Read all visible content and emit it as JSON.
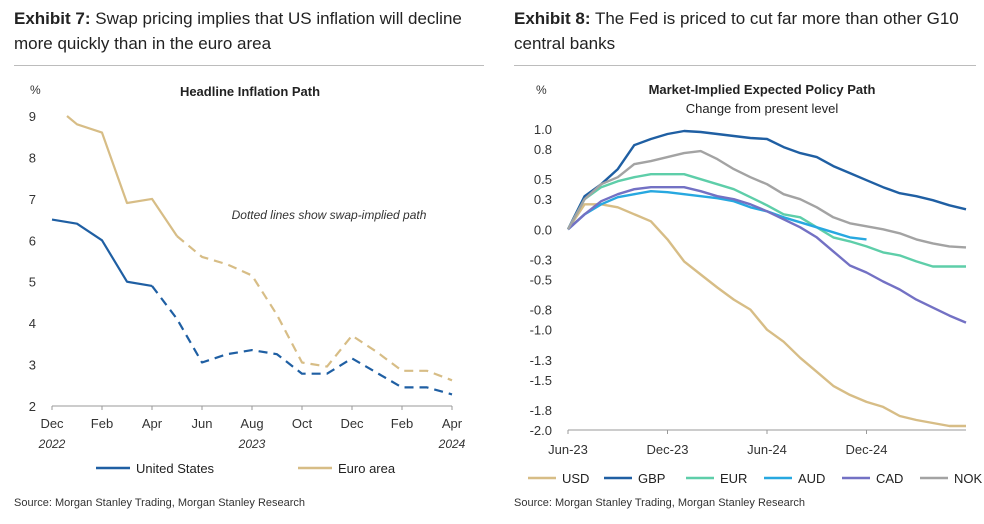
{
  "left": {
    "exhibit": "Exhibit 7:",
    "title": "Swap pricing implies that US inflation will decline more quickly than in the euro area",
    "source": "Source: Morgan Stanley Trading, Morgan Stanley Research",
    "chart_data": {
      "type": "line",
      "title": "Headline Inflation Path",
      "ylabel": "%",
      "annotation": "Dotted lines show swap-implied path",
      "ylim": [
        2,
        9
      ],
      "yticks": [
        2,
        3,
        4,
        5,
        6,
        7,
        8,
        9
      ],
      "grid": false,
      "legend": "bottom",
      "x_tick_labels": [
        "Dec",
        "Feb",
        "Apr",
        "Jun",
        "Aug",
        "Oct",
        "Dec",
        "Feb",
        "Apr"
      ],
      "x_tick_positions": [
        0,
        2,
        4,
        6,
        8,
        10,
        12,
        14,
        16
      ],
      "year_labels": [
        {
          "label": "2022",
          "x": 0
        },
        {
          "label": "2023",
          "x": 8
        },
        {
          "label": "2024",
          "x": 16
        }
      ],
      "series": [
        {
          "name": "United States",
          "color": "#1f5fa3",
          "solid": [
            [
              0,
              6.5
            ],
            [
              1,
              6.4
            ],
            [
              2,
              6.0
            ],
            [
              3,
              5.0
            ],
            [
              4,
              4.9
            ]
          ],
          "dashed": [
            [
              4,
              4.9
            ],
            [
              5,
              4.1
            ],
            [
              6,
              3.05
            ],
            [
              7,
              3.25
            ],
            [
              8,
              3.35
            ],
            [
              9,
              3.25
            ],
            [
              10,
              2.78
            ],
            [
              11,
              2.78
            ],
            [
              12,
              3.15
            ],
            [
              13,
              2.8
            ],
            [
              14,
              2.45
            ],
            [
              15,
              2.45
            ],
            [
              16,
              2.28
            ]
          ]
        },
        {
          "name": "Euro area",
          "color": "#d7bd86",
          "solid": [
            [
              0.6,
              9.0
            ],
            [
              1,
              8.8
            ],
            [
              2,
              8.6
            ],
            [
              3,
              6.9
            ],
            [
              4,
              7.0
            ],
            [
              5,
              6.1
            ]
          ],
          "dashed": [
            [
              5,
              6.1
            ],
            [
              6,
              5.6
            ],
            [
              7,
              5.42
            ],
            [
              8,
              5.15
            ],
            [
              9,
              4.2
            ],
            [
              10,
              3.05
            ],
            [
              11,
              2.95
            ],
            [
              12,
              3.7
            ],
            [
              13,
              3.3
            ],
            [
              14,
              2.85
            ],
            [
              15,
              2.85
            ],
            [
              16,
              2.62
            ]
          ]
        }
      ]
    }
  },
  "right": {
    "exhibit": "Exhibit 8:",
    "title": "The Fed is priced to cut far more than other G10 central banks",
    "source": "Source: Morgan Stanley Trading, Morgan Stanley Research",
    "chart_data": {
      "type": "line",
      "title": "Market-Implied Expected Policy Path",
      "subtitle": "Change from present level",
      "ylabel": "%",
      "ylim": [
        -2.0,
        1.0
      ],
      "yticks": [
        1.0,
        0.8,
        0.5,
        0.3,
        0.0,
        -0.3,
        -0.5,
        -0.8,
        -1.0,
        -1.3,
        -1.5,
        -1.8,
        -2.0
      ],
      "x_tick_labels": [
        "Jun-23",
        "Dec-23",
        "Jun-24",
        "Dec-24"
      ],
      "x_tick_positions": [
        0,
        6,
        12,
        18
      ],
      "grid": false,
      "legend": "bottom",
      "series": [
        {
          "name": "USD",
          "color": "#d7bd86",
          "points": [
            [
              0,
              0.0
            ],
            [
              1,
              0.25
            ],
            [
              2,
              0.25
            ],
            [
              3,
              0.22
            ],
            [
              4,
              0.15
            ],
            [
              5,
              0.08
            ],
            [
              6,
              -0.1
            ],
            [
              7,
              -0.32
            ],
            [
              8,
              -0.45
            ],
            [
              9,
              -0.58
            ],
            [
              10,
              -0.7
            ],
            [
              11,
              -0.8
            ],
            [
              12,
              -1.0
            ],
            [
              13,
              -1.12
            ],
            [
              14,
              -1.28
            ],
            [
              15,
              -1.42
            ],
            [
              16,
              -1.56
            ],
            [
              17,
              -1.65
            ],
            [
              18,
              -1.72
            ],
            [
              19,
              -1.77
            ],
            [
              20,
              -1.86
            ],
            [
              21,
              -1.9
            ],
            [
              22,
              -1.93
            ],
            [
              23,
              -1.96
            ],
            [
              24,
              -1.96
            ]
          ]
        },
        {
          "name": "GBP",
          "color": "#1f5fa3",
          "points": [
            [
              0,
              0.0
            ],
            [
              1,
              0.33
            ],
            [
              2,
              0.45
            ],
            [
              3,
              0.6
            ],
            [
              4,
              0.84
            ],
            [
              5,
              0.9
            ],
            [
              6,
              0.95
            ],
            [
              7,
              0.98
            ],
            [
              8,
              0.97
            ],
            [
              9,
              0.95
            ],
            [
              10,
              0.93
            ],
            [
              11,
              0.91
            ],
            [
              12,
              0.9
            ],
            [
              13,
              0.82
            ],
            [
              14,
              0.76
            ],
            [
              15,
              0.72
            ],
            [
              16,
              0.63
            ],
            [
              17,
              0.56
            ],
            [
              18,
              0.49
            ],
            [
              19,
              0.42
            ],
            [
              20,
              0.36
            ],
            [
              21,
              0.33
            ],
            [
              22,
              0.29
            ],
            [
              23,
              0.24
            ],
            [
              24,
              0.2
            ]
          ]
        },
        {
          "name": "EUR",
          "color": "#5ecea9",
          "points": [
            [
              0,
              0.0
            ],
            [
              1,
              0.3
            ],
            [
              2,
              0.42
            ],
            [
              3,
              0.48
            ],
            [
              4,
              0.52
            ],
            [
              5,
              0.55
            ],
            [
              6,
              0.55
            ],
            [
              7,
              0.55
            ],
            [
              8,
              0.5
            ],
            [
              9,
              0.45
            ],
            [
              10,
              0.4
            ],
            [
              11,
              0.32
            ],
            [
              12,
              0.24
            ],
            [
              13,
              0.15
            ],
            [
              14,
              0.12
            ],
            [
              15,
              0.02
            ],
            [
              16,
              -0.08
            ],
            [
              17,
              -0.12
            ],
            [
              18,
              -0.17
            ],
            [
              19,
              -0.23
            ],
            [
              20,
              -0.26
            ],
            [
              21,
              -0.32
            ],
            [
              22,
              -0.37
            ],
            [
              23,
              -0.37
            ],
            [
              24,
              -0.37
            ]
          ]
        },
        {
          "name": "AUD",
          "color": "#27a8e0",
          "points": [
            [
              0,
              0.0
            ],
            [
              1,
              0.15
            ],
            [
              2,
              0.25
            ],
            [
              3,
              0.32
            ],
            [
              4,
              0.35
            ],
            [
              5,
              0.38
            ],
            [
              6,
              0.37
            ],
            [
              7,
              0.35
            ],
            [
              8,
              0.33
            ],
            [
              9,
              0.31
            ],
            [
              10,
              0.28
            ],
            [
              11,
              0.22
            ],
            [
              12,
              0.18
            ],
            [
              13,
              0.12
            ],
            [
              14,
              0.07
            ],
            [
              15,
              0.02
            ],
            [
              16,
              -0.03
            ],
            [
              17,
              -0.08
            ],
            [
              18,
              -0.1
            ]
          ]
        },
        {
          "name": "CAD",
          "color": "#7371c4",
          "points": [
            [
              0,
              0.0
            ],
            [
              1,
              0.15
            ],
            [
              2,
              0.28
            ],
            [
              3,
              0.35
            ],
            [
              4,
              0.4
            ],
            [
              5,
              0.42
            ],
            [
              6,
              0.42
            ],
            [
              7,
              0.42
            ],
            [
              8,
              0.38
            ],
            [
              9,
              0.33
            ],
            [
              10,
              0.3
            ],
            [
              11,
              0.25
            ],
            [
              12,
              0.18
            ],
            [
              13,
              0.1
            ],
            [
              14,
              0.02
            ],
            [
              15,
              -0.08
            ],
            [
              16,
              -0.22
            ],
            [
              17,
              -0.36
            ],
            [
              18,
              -0.43
            ],
            [
              19,
              -0.52
            ],
            [
              20,
              -0.6
            ],
            [
              21,
              -0.7
            ],
            [
              22,
              -0.78
            ],
            [
              23,
              -0.86
            ],
            [
              24,
              -0.93
            ]
          ]
        },
        {
          "name": "NOK",
          "color": "#a3a3a3",
          "points": [
            [
              0,
              0.0
            ],
            [
              1,
              0.3
            ],
            [
              2,
              0.45
            ],
            [
              3,
              0.52
            ],
            [
              4,
              0.65
            ],
            [
              5,
              0.68
            ],
            [
              6,
              0.72
            ],
            [
              7,
              0.76
            ],
            [
              8,
              0.78
            ],
            [
              9,
              0.7
            ],
            [
              10,
              0.6
            ],
            [
              11,
              0.52
            ],
            [
              12,
              0.45
            ],
            [
              13,
              0.35
            ],
            [
              14,
              0.3
            ],
            [
              15,
              0.22
            ],
            [
              16,
              0.12
            ],
            [
              17,
              0.06
            ],
            [
              18,
              0.03
            ],
            [
              19,
              0.0
            ],
            [
              20,
              -0.04
            ],
            [
              21,
              -0.1
            ],
            [
              22,
              -0.14
            ],
            [
              23,
              -0.17
            ],
            [
              24,
              -0.18
            ]
          ]
        }
      ]
    }
  }
}
